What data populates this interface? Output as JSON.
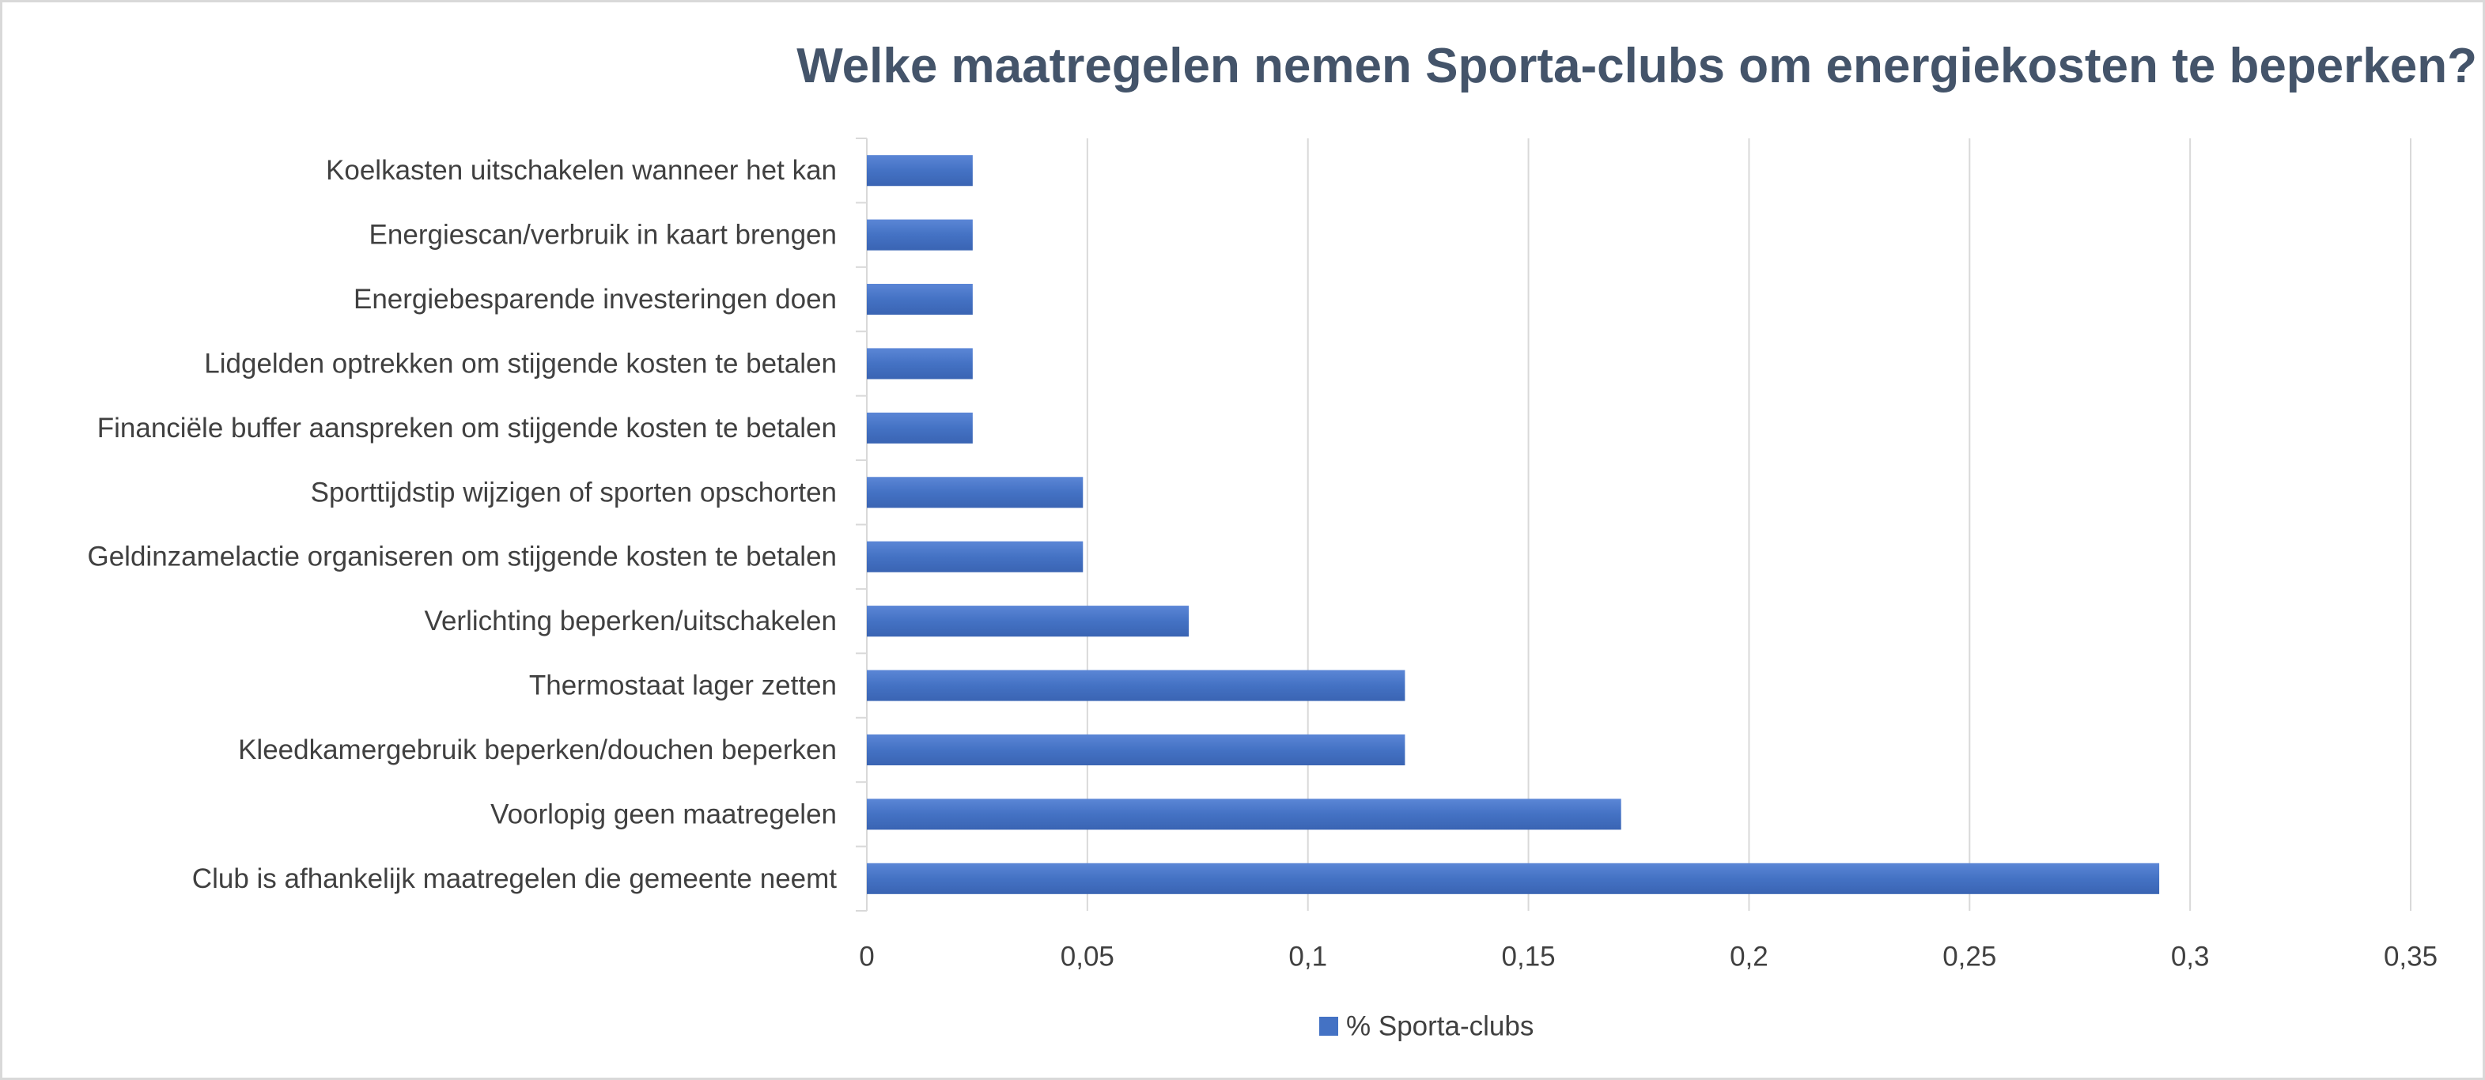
{
  "chart_data": {
    "type": "bar",
    "orientation": "horizontal",
    "title": "Welke maatregelen nemen Sporta-clubs om energiekosten te beperken?",
    "categories": [
      "Koelkasten uitschakelen wanneer het kan",
      "Energiescan/verbruik in kaart brengen",
      "Energiebesparende investeringen doen",
      "Lidgelden optrekken om stijgende kosten te betalen",
      "Financiële buffer aanspreken om stijgende kosten te betalen",
      "Sporttijdstip wijzigen of sporten opschorten",
      "Geldinzamelactie organiseren om stijgende kosten te betalen",
      "Verlichting beperken/uitschakelen",
      "Thermostaat lager zetten",
      "Kleedkamergebruik beperken/douchen beperken",
      "Voorlopig geen maatregelen",
      "Club is afhankelijk maatregelen die gemeente neemt"
    ],
    "series": [
      {
        "name": "% Sporta-clubs",
        "color": "#4472c4",
        "values": [
          0.024,
          0.024,
          0.024,
          0.024,
          0.024,
          0.049,
          0.049,
          0.073,
          0.122,
          0.122,
          0.171,
          0.293
        ]
      }
    ],
    "xlim": [
      0,
      0.35
    ],
    "xticks": [
      0,
      0.05,
      0.1,
      0.15,
      0.2,
      0.25,
      0.3,
      0.35
    ],
    "xtick_labels": [
      "0",
      "0,05",
      "0,1",
      "0,15",
      "0,2",
      "0,25",
      "0,3",
      "0,35"
    ],
    "grid": "vertical",
    "legend": "bottom"
  }
}
